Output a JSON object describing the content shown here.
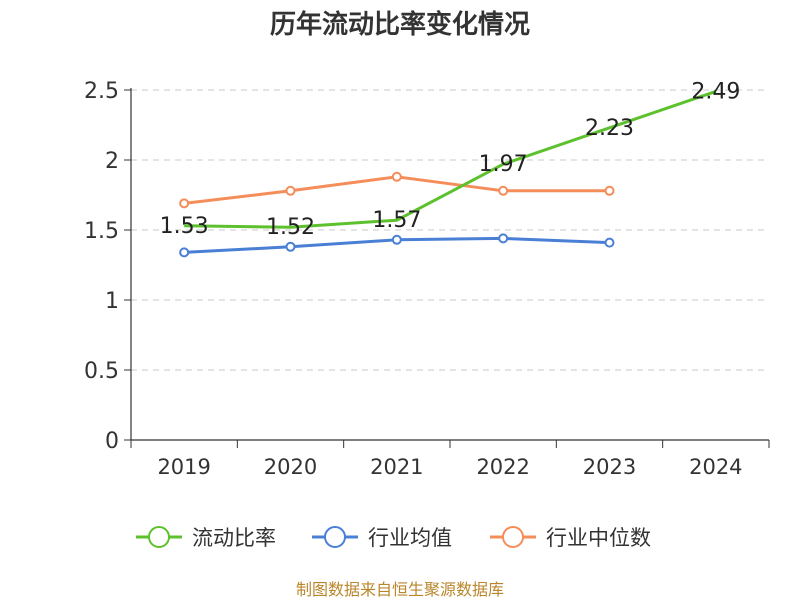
{
  "chart_data": {
    "type": "line",
    "title": "历年流动比率变化情况",
    "categories": [
      "2019",
      "2020",
      "2021",
      "2022",
      "2023",
      "2024"
    ],
    "ylim": [
      0,
      2.5
    ],
    "yticks": [
      "0",
      "0.5",
      "1",
      "1.5",
      "2",
      "2.5"
    ],
    "grid": true,
    "legend_position": "bottom",
    "series": [
      {
        "name": "流动比率",
        "color": "#5dc12d",
        "values": [
          1.53,
          1.52,
          1.57,
          1.97,
          2.23,
          2.49
        ],
        "labels": [
          "1.53",
          "1.52",
          "1.57",
          "1.97",
          "2.23",
          "2.49"
        ],
        "markers": false
      },
      {
        "name": "行业均值",
        "color": "#4a7fd6",
        "values": [
          1.34,
          1.38,
          1.43,
          1.44,
          1.41,
          null
        ],
        "markers": true
      },
      {
        "name": "行业中位数",
        "color": "#f58d5a",
        "values": [
          1.69,
          1.78,
          1.88,
          1.78,
          1.78,
          null
        ],
        "markers": true
      }
    ]
  },
  "source": "制图数据来自恒生聚源数据库"
}
